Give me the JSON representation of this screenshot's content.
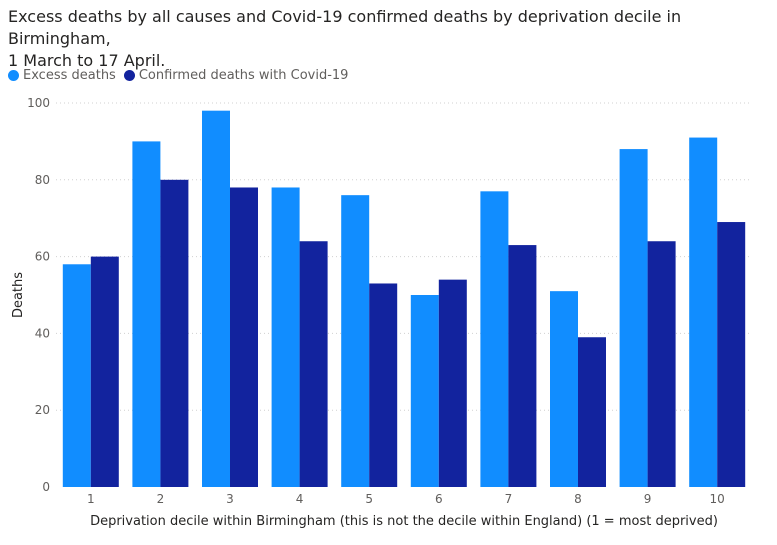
{
  "chart_data": {
    "type": "bar",
    "title": "Excess deaths by all causes and Covid-19 confirmed deaths by deprivation decile in Birmingham,",
    "subtitle": "1 March to 17 April.",
    "xlabel": "Deprivation decile within Birmingham (this is not the decile within England) (1 = most deprived)",
    "ylabel": "Deaths",
    "categories": [
      "1",
      "2",
      "3",
      "4",
      "5",
      "6",
      "7",
      "8",
      "9",
      "10"
    ],
    "series": [
      {
        "name": "Excess deaths",
        "color": "#118DFF",
        "values": [
          58,
          90,
          98,
          78,
          76,
          50,
          77,
          51,
          88,
          91
        ]
      },
      {
        "name": "Confirmed deaths with Covid-19",
        "color": "#12239E",
        "values": [
          60,
          80,
          78,
          64,
          53,
          54,
          63,
          39,
          64,
          69
        ]
      }
    ],
    "yticks": [
      0,
      20,
      40,
      60,
      80,
      100
    ],
    "ylim": [
      0,
      100
    ],
    "grid": true,
    "legend": "top-left"
  }
}
